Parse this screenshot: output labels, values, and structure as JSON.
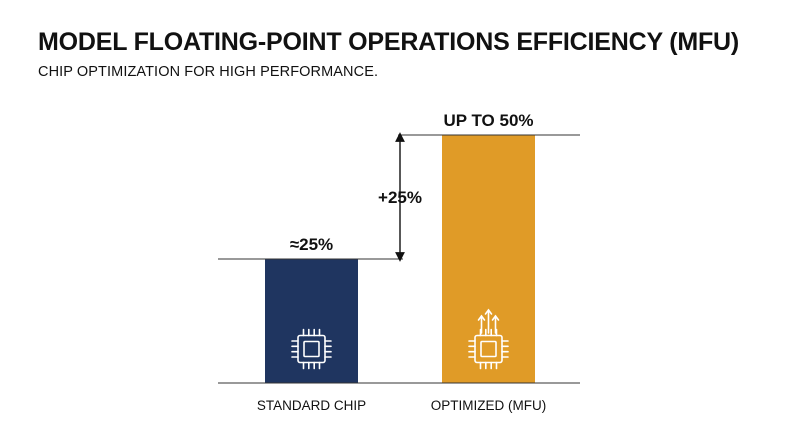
{
  "header": {
    "title": "MODEL FLOATING-POINT OPERATIONS EFFICIENCY (MFU)",
    "subtitle": "CHIP OPTIMIZATION FOR HIGH PERFORMANCE."
  },
  "chart_data": {
    "type": "bar",
    "title": "MODEL FLOATING-POINT OPERATIONS EFFICIENCY (MFU)",
    "subtitle": "CHIP OPTIMIZATION FOR HIGH PERFORMANCE.",
    "categories": [
      "STANDARD CHIP",
      "OPTIMIZED (MFU)"
    ],
    "values": [
      25,
      50
    ],
    "value_labels": [
      "≈25%",
      "UP TO 50%"
    ],
    "difference_label": "+25%",
    "unit": "%",
    "ylim": [
      0,
      50
    ],
    "grid": false,
    "bar_colors": [
      "#1f3560",
      "#e09b27"
    ],
    "bar_icons": [
      "chip-icon",
      "chip-boost-icon"
    ]
  }
}
